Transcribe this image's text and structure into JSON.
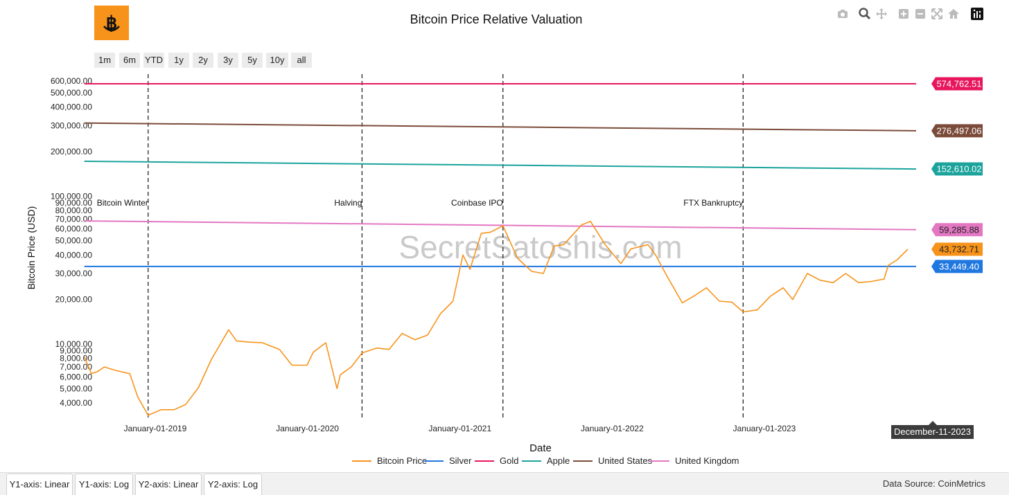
{
  "title": "Bitcoin Price Relative Valuation",
  "watermark": "SecretSatoshis.com",
  "range_buttons": [
    "1m",
    "6m",
    "YTD",
    "1y",
    "2y",
    "3y",
    "5y",
    "10y",
    "all"
  ],
  "modebar_icons": [
    "camera-icon",
    "zoom-icon",
    "pan-icon",
    "zoom-in-icon",
    "zoom-out-icon",
    "autoscale-icon",
    "reset-axes-icon",
    "plotly-logo-icon"
  ],
  "legend": [
    "Bitcoin Price",
    "Silver",
    "Gold",
    "Apple",
    "United States",
    "United Kingdom"
  ],
  "tabs": [
    "Y1-axis: Linear",
    "Y1-axis: Log",
    "Y2-axis: Linear",
    "Y2-axis: Log"
  ],
  "source_text": "Data Source: CoinMetrics",
  "hover_x_label": "December-11-2023",
  "colors": {
    "bitcoin": "#f7931a",
    "silver": "#1f77e0",
    "gold": "#e8175d",
    "apple": "#1ba39c",
    "united_states": "#7b4b3a",
    "united_kingdom": "#e377c2",
    "logo_bg": "#f7931a"
  },
  "chart_data": {
    "type": "line",
    "title": "Bitcoin Price Relative Valuation",
    "xlabel": "Date",
    "ylabel": "Bitcoin Price (USD)",
    "yscale": "log",
    "xlim": [
      "2018-07-15",
      "2023-12-31"
    ],
    "ylim": [
      3200,
      700000
    ],
    "x_ticks": [
      "2019-01-01",
      "2020-01-01",
      "2021-01-01",
      "2022-01-01",
      "2023-01-01"
    ],
    "x_tick_labels": [
      "January-01-2019",
      "January-01-2020",
      "January-01-2021",
      "January-01-2022",
      "January-01-2023"
    ],
    "y_ticks": [
      4000,
      5000,
      6000,
      7000,
      8000,
      9000,
      10000,
      20000,
      30000,
      40000,
      50000,
      60000,
      70000,
      80000,
      90000,
      100000,
      200000,
      300000,
      400000,
      500000,
      600000
    ],
    "y_tick_labels": [
      "4,000.00",
      "5,000.00",
      "6,000.00",
      "7,000.00",
      "8,000.00",
      "9,000.00",
      "10,000.00",
      "20,000.00",
      "30,000.00",
      "40,000.00",
      "50,000.00",
      "60,000.00",
      "70,000.00",
      "80,000.00",
      "90,000.00",
      "100,000.00",
      "200,000.00",
      "300,000.00",
      "400,000.00",
      "500,000.00",
      "600,000.00"
    ],
    "grid": false,
    "legend_position": "bottom",
    "events": [
      {
        "date": "2018-12-15",
        "label": "Bitcoin Winter"
      },
      {
        "date": "2020-05-11",
        "label": "Halving"
      },
      {
        "date": "2021-04-14",
        "label": "Coinbase IPO"
      },
      {
        "date": "2022-11-11",
        "label": "FTX Bankruptcy"
      }
    ],
    "series": [
      {
        "name": "Bitcoin Price",
        "color": "#f7931a",
        "last_value_label": "43,732.71",
        "x": [
          "2018-07-15",
          "2018-08-01",
          "2018-08-15",
          "2018-09-01",
          "2018-10-01",
          "2018-11-01",
          "2018-11-20",
          "2018-12-15",
          "2019-01-15",
          "2019-02-15",
          "2019-03-15",
          "2019-04-15",
          "2019-05-15",
          "2019-06-26",
          "2019-07-15",
          "2019-08-15",
          "2019-09-15",
          "2019-10-26",
          "2019-11-25",
          "2019-12-31",
          "2020-01-15",
          "2020-02-14",
          "2020-03-12",
          "2020-03-20",
          "2020-04-15",
          "2020-05-11",
          "2020-06-15",
          "2020-07-15",
          "2020-08-15",
          "2020-09-15",
          "2020-10-15",
          "2020-11-15",
          "2020-12-15",
          "2021-01-08",
          "2021-01-25",
          "2021-02-21",
          "2021-03-15",
          "2021-04-14",
          "2021-05-19",
          "2021-06-22",
          "2021-07-20",
          "2021-08-15",
          "2021-09-07",
          "2021-10-20",
          "2021-11-10",
          "2021-12-15",
          "2022-01-22",
          "2022-02-15",
          "2022-03-28",
          "2022-04-15",
          "2022-05-12",
          "2022-06-18",
          "2022-07-15",
          "2022-08-15",
          "2022-09-15",
          "2022-10-15",
          "2022-11-11",
          "2022-12-15",
          "2023-01-15",
          "2023-02-15",
          "2023-03-10",
          "2023-04-14",
          "2023-05-15",
          "2023-06-15",
          "2023-07-15",
          "2023-08-15",
          "2023-09-15",
          "2023-10-15",
          "2023-10-25",
          "2023-11-15",
          "2023-12-11"
        ],
        "y": [
          8200,
          6300,
          6500,
          7000,
          6600,
          6300,
          4400,
          3300,
          3600,
          3600,
          3900,
          5100,
          7800,
          12500,
          10500,
          10300,
          10200,
          9200,
          7200,
          7200,
          8800,
          10200,
          5000,
          6200,
          7000,
          8700,
          9400,
          9200,
          11800,
          10700,
          11500,
          16000,
          19500,
          40000,
          32000,
          56000,
          57000,
          63000,
          38000,
          31000,
          30000,
          46000,
          47000,
          64000,
          67500,
          47000,
          35000,
          44000,
          47000,
          40000,
          29000,
          19000,
          21000,
          24000,
          19500,
          19200,
          16500,
          17000,
          21000,
          24000,
          20000,
          30000,
          27000,
          26000,
          30000,
          26000,
          26500,
          27500,
          34000,
          37000,
          43732.71
        ]
      },
      {
        "name": "Silver",
        "color": "#1f77e0",
        "last_value_label": "33,449.40",
        "x": [
          "2018-07-15",
          "2023-12-31"
        ],
        "y": [
          33449.4,
          33449.4
        ]
      },
      {
        "name": "Gold",
        "color": "#e8175d",
        "last_value_label": "574,762.51",
        "x": [
          "2018-07-15",
          "2023-12-31"
        ],
        "y": [
          574762.51,
          574762.51
        ]
      },
      {
        "name": "Apple",
        "color": "#1ba39c",
        "last_value_label": "152,610.02",
        "x": [
          "2018-07-15",
          "2023-12-31"
        ],
        "y": [
          172000,
          152610.02
        ]
      },
      {
        "name": "United States",
        "color": "#7b4b3a",
        "last_value_label": "276,497.06",
        "x": [
          "2018-07-15",
          "2023-12-31"
        ],
        "y": [
          312000,
          276497.06
        ]
      },
      {
        "name": "United Kingdom",
        "color": "#e377c2",
        "last_value_label": "59,285.88",
        "x": [
          "2018-07-15",
          "2023-12-31"
        ],
        "y": [
          68000,
          59285.88
        ]
      }
    ]
  }
}
